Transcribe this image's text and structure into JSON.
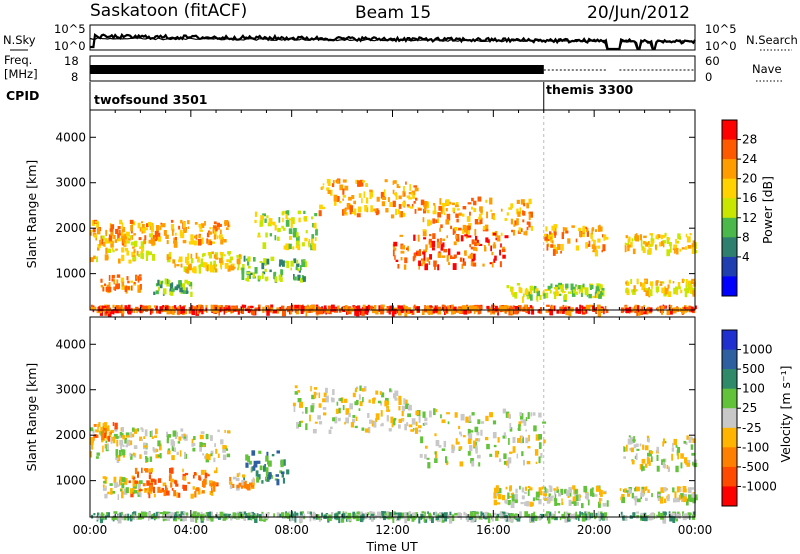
{
  "header": {
    "station": "Saskatoon (fitACF)",
    "beam": "Beam 15",
    "date": "20/Jun/2012"
  },
  "top_panels": {
    "nsky_label": "N.Sky",
    "nsearch_label": "N.Search",
    "nsky_ticks": [
      "10^5",
      "10^0"
    ],
    "freq_label_line1": "Freq.",
    "freq_label_line2": "[MHz]",
    "freq_ticks": [
      "18",
      "8"
    ],
    "nave_label": "Nave",
    "nave_ticks": [
      "60",
      "0"
    ],
    "cpid_label": "CPID",
    "cpid_segments": [
      {
        "name": "twofsound 3501",
        "start_hour": 0,
        "end_hour": 18
      },
      {
        "name": "themis 3300",
        "start_hour": 18,
        "end_hour": 24
      }
    ]
  },
  "colorbars": {
    "power": {
      "label": "Power [dB]",
      "tick_labels": [
        "28",
        "24",
        "20",
        "16",
        "12",
        "8",
        "4"
      ],
      "colors": [
        "#ff0000",
        "#ff5a00",
        "#ff9c00",
        "#ffd200",
        "#c8e600",
        "#4ab84a",
        "#2f7f6e",
        "#1f3fb0",
        "#0000ff"
      ]
    },
    "velocity": {
      "label": "Velocity [m s⁻¹]",
      "tick_labels": [
        "1000",
        "500",
        "100",
        "25",
        "-25",
        "-100",
        "-500",
        "-1000"
      ],
      "colors": [
        "#1f2fd0",
        "#2e5fa0",
        "#2f8a6a",
        "#62c23a",
        "#c8c8c8",
        "#ffb400",
        "#ff8000",
        "#ff4a00",
        "#ff0000"
      ]
    }
  },
  "chart_data": [
    {
      "type": "heatmap",
      "panel": "power",
      "ylabel": "Slant Range [km]",
      "ylim": [
        200,
        4600
      ],
      "yticks": [
        1000,
        2000,
        3000,
        4000
      ],
      "xlim": [
        0,
        24
      ],
      "bands": [
        {
          "t0": 0.0,
          "t1": 2.5,
          "y0": 1300,
          "y1": 1900,
          "level": 5
        },
        {
          "t0": 0.0,
          "t1": 5.5,
          "y0": 1700,
          "y1": 2200,
          "level": 6
        },
        {
          "t0": 0.4,
          "t1": 2.0,
          "y0": 700,
          "y1": 1000,
          "level": 6
        },
        {
          "t0": 2.5,
          "t1": 4.0,
          "y0": 600,
          "y1": 900,
          "level": 3
        },
        {
          "t0": 3.0,
          "t1": 6.0,
          "y0": 1100,
          "y1": 1500,
          "level": 5
        },
        {
          "t0": 6.0,
          "t1": 8.5,
          "y0": 900,
          "y1": 1400,
          "level": 3
        },
        {
          "t0": 6.5,
          "t1": 9.0,
          "y0": 1600,
          "y1": 2400,
          "level": 4
        },
        {
          "t0": 9.0,
          "t1": 13.0,
          "y0": 2300,
          "y1": 3100,
          "level": 6
        },
        {
          "t0": 13.0,
          "t1": 17.5,
          "y0": 1900,
          "y1": 2700,
          "level": 6
        },
        {
          "t0": 12.0,
          "t1": 16.5,
          "y0": 1200,
          "y1": 1900,
          "level": 7
        },
        {
          "t0": 16.5,
          "t1": 20.3,
          "y0": 500,
          "y1": 800,
          "level": 4
        },
        {
          "t0": 18.0,
          "t1": 20.5,
          "y0": 1500,
          "y1": 2100,
          "level": 6
        },
        {
          "t0": 21.2,
          "t1": 24.0,
          "y0": 1500,
          "y1": 1900,
          "level": 5
        },
        {
          "t0": 21.2,
          "t1": 24.0,
          "y0": 600,
          "y1": 900,
          "level": 5
        },
        {
          "t0": 0.0,
          "t1": 24.0,
          "y0": 200,
          "y1": 320,
          "level": 7
        }
      ]
    },
    {
      "type": "heatmap",
      "panel": "velocity",
      "ylabel": "Slant Range [km]",
      "ylim": [
        200,
        4600
      ],
      "yticks": [
        1000,
        2000,
        3000,
        4000
      ],
      "xlim": [
        0,
        24
      ],
      "xticks": [
        "00:00",
        "04:00",
        "08:00",
        "12:00",
        "16:00",
        "20:00",
        "00:00"
      ],
      "xlabel": "Time UT",
      "bands": [
        {
          "t0": 0.0,
          "t1": 5.5,
          "y0": 1500,
          "y1": 2200,
          "level": 4
        },
        {
          "t0": 0.5,
          "t1": 2.0,
          "y0": 700,
          "y1": 1100,
          "level": 4
        },
        {
          "t0": 1.5,
          "t1": 5.0,
          "y0": 700,
          "y1": 1300,
          "level": 2
        },
        {
          "t0": 0.0,
          "t1": 1.0,
          "y0": 1900,
          "y1": 2300,
          "level": 2
        },
        {
          "t0": 6.0,
          "t1": 7.8,
          "y0": 1000,
          "y1": 1700,
          "level": 6
        },
        {
          "t0": 5.5,
          "t1": 6.5,
          "y0": 900,
          "y1": 1200,
          "level": 3
        },
        {
          "t0": 8.0,
          "t1": 13.0,
          "y0": 2100,
          "y1": 3100,
          "level": 4
        },
        {
          "t0": 13.0,
          "t1": 18.0,
          "y0": 1400,
          "y1": 2600,
          "level": 4
        },
        {
          "t0": 16.0,
          "t1": 20.5,
          "y0": 500,
          "y1": 900,
          "level": 4
        },
        {
          "t0": 20.5,
          "t1": 24.0,
          "y0": 1300,
          "y1": 2000,
          "level": 4
        },
        {
          "t0": 21.0,
          "t1": 24.0,
          "y0": 600,
          "y1": 900,
          "level": 4
        },
        {
          "t0": 0.0,
          "t1": 24.0,
          "y0": 200,
          "y1": 330,
          "level": 5
        }
      ]
    }
  ],
  "data_gaps_hours": [
    [
      20.5,
      21.0
    ],
    [
      21.7,
      21.8
    ],
    [
      22.3,
      22.4
    ]
  ],
  "transition_hour": 18.0
}
